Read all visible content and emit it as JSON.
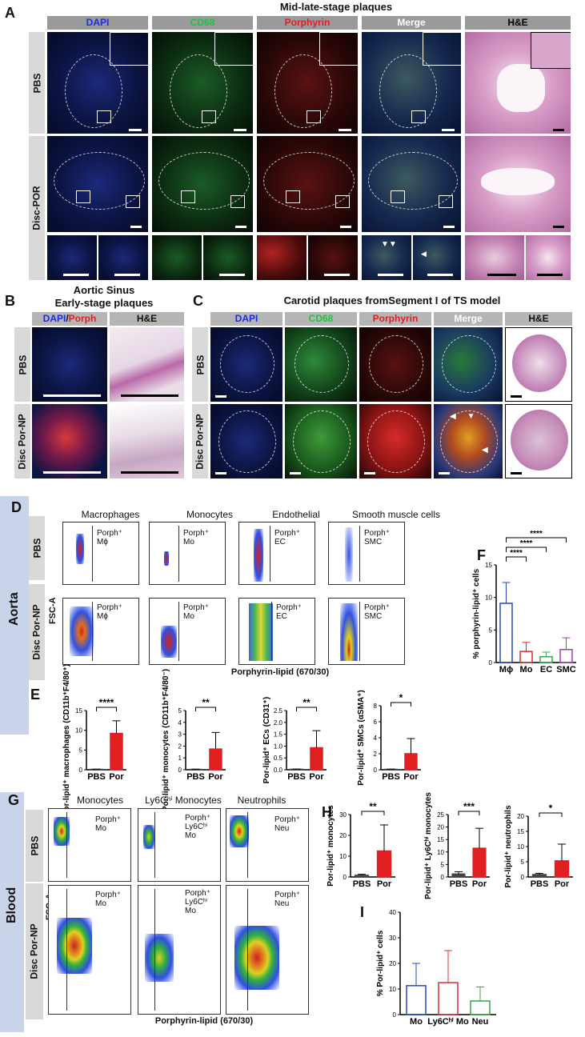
{
  "panelA": {
    "letter": "A",
    "title": "Mid-late-stage plaques",
    "columns": [
      "DAPI",
      "CD68",
      "Porphyrin",
      "Merge",
      "H&E"
    ],
    "column_colors": [
      "#1a2ee0",
      "#22c043",
      "#e02020",
      "#ffffff",
      "#000000"
    ],
    "rows": [
      "PBS",
      "Disc-POR"
    ]
  },
  "panelB": {
    "letter": "B",
    "title_line1": "Aortic Sinus",
    "title_line2": "Early-stage plaques",
    "col1_part1": "DAPI",
    "col1_sep": "/",
    "col1_part2": "Porph",
    "col2": "H&E",
    "rows": [
      "PBS",
      "Disc Por-NP"
    ]
  },
  "panelC": {
    "letter": "C",
    "title": "Carotid plaques fromSegment I of TS model",
    "columns": [
      "DAPI",
      "CD68",
      "Porphyrin",
      "Merge",
      "H&E"
    ],
    "rows": [
      "PBS",
      "Disc Por-NP"
    ]
  },
  "panelD": {
    "letter": "D",
    "side_label": "Aorta",
    "columns": [
      "Macrophages",
      "Monocytes",
      "Endothelial",
      "Smooth muscle cells"
    ],
    "gates": [
      {
        "line1": "Porph⁺",
        "line2": "Mϕ"
      },
      {
        "line1": "Porph⁺",
        "line2": "Mo"
      },
      {
        "line1": "Porph⁺",
        "line2": "EC"
      },
      {
        "line1": "Porph⁺",
        "line2": "SMC"
      }
    ],
    "rows": [
      "PBS",
      "Disc Por-NP"
    ],
    "ylabel": "FSC-A",
    "xlabel": "Porphyrin-lipid (670/30)"
  },
  "panelE": {
    "letter": "E",
    "charts": [
      {
        "ylabel": "Por-lipid⁺ macrophages (CD11b⁺F4/80⁺)",
        "sig": "****",
        "yticks": [
          "0",
          "5",
          "10",
          "15"
        ]
      },
      {
        "ylabel": "Por-lipid⁺ monocytes (CD11b⁺F4/80⁻)",
        "sig": "**",
        "yticks": [
          "0",
          "1",
          "2",
          "3",
          "4",
          "5"
        ]
      },
      {
        "ylabel": "Por-lipid⁺ ECs (CD31⁺)",
        "sig": "**",
        "yticks": [
          "0.0",
          "0.5",
          "1.0",
          "1.5",
          "2.0",
          "2.5"
        ]
      },
      {
        "ylabel": "Por-lipid⁺ SMCs (αSMA⁺)",
        "sig": "*",
        "yticks": [
          "0",
          "2",
          "4",
          "6",
          "8"
        ]
      }
    ],
    "xcats": [
      "PBS",
      "Por"
    ]
  },
  "panelF": {
    "letter": "F",
    "ylabel": "% porphyrin-lipid⁺ cells",
    "yticks": [
      "0",
      "5",
      "10",
      "15"
    ],
    "categories": [
      "Mϕ",
      "Mo",
      "EC",
      "SMC"
    ],
    "sigs": [
      "****",
      "****",
      "****"
    ]
  },
  "panelG": {
    "letter": "G",
    "side_label": "Blood",
    "columns": [
      "Monocytes",
      "Ly6Cʰⁱ Monocytes",
      "Neutrophils"
    ],
    "gates": [
      {
        "line1": "Porph⁺",
        "line2": "Mo",
        "line3": ""
      },
      {
        "line1": "Porph⁺",
        "line2": "Ly6Cʰⁱ",
        "line3": "Mo"
      },
      {
        "line1": "Porph⁺",
        "line2": "Neu",
        "line3": ""
      }
    ],
    "rows": [
      "PBS",
      "Disc Por-NP"
    ],
    "ylabel": "FSC-A",
    "xlabel": "Porphyrin-lipid (670/30)"
  },
  "panelH": {
    "letter": "H",
    "charts": [
      {
        "ylabel": "Por-lipid⁺ monocytes",
        "sig": "**",
        "yticks": [
          "0",
          "10",
          "20",
          "30"
        ]
      },
      {
        "ylabel": "Por-lipid⁺ Ly6Cʰⁱ monocytes",
        "sig": "***",
        "yticks": [
          "0",
          "5",
          "10",
          "15",
          "20",
          "25"
        ]
      },
      {
        "ylabel": "Por-lipid⁺ neutrophils",
        "sig": "*",
        "yticks": [
          "0",
          "5",
          "10",
          "15",
          "20"
        ]
      }
    ],
    "xcats": [
      "PBS",
      "Por"
    ]
  },
  "panelI": {
    "letter": "I",
    "ylabel": "% Por-lipid⁺ cells",
    "yticks": [
      "0",
      "10",
      "20",
      "30",
      "40"
    ],
    "categories": [
      "Mo",
      "Ly6Cʰⁱ Mo",
      "Neu"
    ]
  },
  "chart_data": [
    {
      "type": "bar",
      "panel": "E1",
      "categories": [
        "PBS",
        "Por"
      ],
      "values": [
        0.1,
        9.2
      ],
      "errors": [
        0.05,
        3.2
      ],
      "ylim": [
        0,
        15
      ],
      "ylabel": "Por-lipid⁺ macrophages (CD11b⁺F4/80⁺)"
    },
    {
      "type": "bar",
      "panel": "E2",
      "categories": [
        "PBS",
        "Por"
      ],
      "values": [
        0.03,
        1.75
      ],
      "errors": [
        0.02,
        1.4
      ],
      "ylim": [
        0,
        5
      ],
      "ylabel": "Por-lipid⁺ monocytes (CD11b⁺F4/80⁻)"
    },
    {
      "type": "bar",
      "panel": "E3",
      "categories": [
        "PBS",
        "Por"
      ],
      "values": [
        0.02,
        0.93
      ],
      "errors": [
        0.01,
        0.72
      ],
      "ylim": [
        0,
        2.5
      ],
      "ylabel": "Por-lipid⁺ ECs (CD31⁺)"
    },
    {
      "type": "bar",
      "panel": "E4",
      "categories": [
        "PBS",
        "Por"
      ],
      "values": [
        0.05,
        2.0
      ],
      "errors": [
        0.03,
        1.9
      ],
      "ylim": [
        0,
        8
      ],
      "ylabel": "Por-lipid⁺ SMCs (αSMA⁺)"
    },
    {
      "type": "bar",
      "panel": "F",
      "categories": [
        "Mϕ",
        "Mo",
        "EC",
        "SMC"
      ],
      "values": [
        9.1,
        1.7,
        0.9,
        2.0
      ],
      "errors": [
        3.2,
        1.4,
        0.7,
        1.8
      ],
      "ylim": [
        0,
        15
      ],
      "colors": [
        "#2748b8",
        "#d23030",
        "#2fa84a",
        "#a23ec0"
      ]
    },
    {
      "type": "bar",
      "panel": "H1",
      "categories": [
        "PBS",
        "Por"
      ],
      "values": [
        0.8,
        12.5
      ],
      "errors": [
        0.5,
        12.5
      ],
      "ylim": [
        0,
        30
      ],
      "ylabel": "Por-lipid⁺ monocytes"
    },
    {
      "type": "bar",
      "panel": "H2",
      "categories": [
        "PBS",
        "Por"
      ],
      "values": [
        1.2,
        11.5
      ],
      "errors": [
        0.9,
        8.0
      ],
      "ylim": [
        0,
        25
      ],
      "ylabel": "Por-lipid⁺ Ly6Cʰⁱ monocytes"
    },
    {
      "type": "bar",
      "panel": "H3",
      "categories": [
        "PBS",
        "Por"
      ],
      "values": [
        0.8,
        5.3
      ],
      "errors": [
        0.4,
        5.5
      ],
      "ylim": [
        0,
        20
      ],
      "ylabel": "Por-lipid⁺ neutrophils"
    },
    {
      "type": "bar",
      "panel": "I",
      "categories": [
        "Mo",
        "Ly6Cʰⁱ Mo",
        "Neu"
      ],
      "values": [
        11.3,
        12.5,
        5.3
      ],
      "errors": [
        8.7,
        12.5,
        5.5
      ],
      "ylim": [
        0,
        40
      ],
      "colors": [
        "#2748b8",
        "#d23030",
        "#2fa84a"
      ]
    }
  ]
}
